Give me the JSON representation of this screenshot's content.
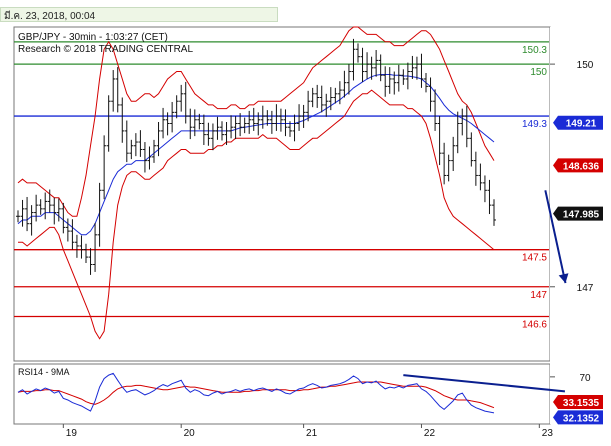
{
  "header": {
    "timestamp": "มี.ค. 23, 2018, 00:04"
  },
  "chart_data": {
    "type": "candlestick",
    "title": "GBP/JPY - 30min - 1:03:27 (CET)",
    "subtitle": "Research © 2018 TRADING CENTRAL",
    "price_axis": {
      "ticks": [
        {
          "value": 150,
          "label": "150"
        },
        {
          "value": 147,
          "label": "147"
        }
      ],
      "ylim": [
        146.0,
        150.5
      ]
    },
    "time_axis": {
      "ticks": [
        {
          "label": "19",
          "x_index": 10
        },
        {
          "label": "20",
          "x_index": 36
        },
        {
          "label": "21",
          "x_index": 63
        },
        {
          "label": "22",
          "x_index": 89
        },
        {
          "label": "23",
          "x_index": 115
        }
      ]
    },
    "levels": [
      {
        "value": 150.3,
        "label": "150.3",
        "color": "#2e8b2e"
      },
      {
        "value": 150.0,
        "label": "150",
        "color": "#2e8b2e"
      },
      {
        "value": 149.3,
        "label": "149.3",
        "color": "#1a2bd6"
      },
      {
        "value": 147.5,
        "label": "147.5",
        "color": "#d40000"
      },
      {
        "value": 147.0,
        "label": "147",
        "color": "#d40000"
      },
      {
        "value": 146.6,
        "label": "146.6",
        "color": "#d40000"
      }
    ],
    "price_markers": [
      {
        "value": 149.21,
        "label": "149.21",
        "bg": "#1a2bd6",
        "fg": "#ffffff"
      },
      {
        "value": 148.636,
        "label": "148.636",
        "bg": "#d40000",
        "fg": "#ffffff"
      },
      {
        "value": 147.985,
        "label": "147.985",
        "bg": "#111111",
        "fg": "#ffffff"
      }
    ],
    "forecast_arrow": {
      "from": [
        115,
        148.3
      ],
      "to": [
        119,
        147.05
      ],
      "color": "#0a1f8f"
    },
    "close": [
      147.95,
      148.05,
      147.85,
      148.0,
      148.1,
      148.05,
      148.15,
      148.1,
      148.0,
      148.05,
      147.8,
      147.75,
      147.6,
      147.55,
      147.5,
      147.4,
      147.3,
      147.7,
      148.3,
      148.9,
      149.5,
      149.8,
      149.45,
      149.1,
      148.8,
      148.9,
      148.95,
      148.85,
      148.7,
      148.75,
      148.9,
      149.1,
      149.25,
      149.2,
      149.35,
      149.5,
      149.6,
      149.3,
      149.15,
      149.25,
      149.2,
      149.05,
      149.0,
      149.1,
      149.15,
      149.05,
      149.1,
      149.15,
      149.2,
      149.15,
      149.2,
      149.25,
      149.2,
      149.25,
      149.3,
      149.25,
      149.2,
      149.3,
      149.25,
      149.15,
      149.1,
      149.2,
      149.3,
      149.35,
      149.5,
      149.6,
      149.55,
      149.45,
      149.5,
      149.55,
      149.6,
      149.65,
      149.75,
      149.9,
      150.2,
      150.1,
      149.9,
      150.0,
      149.95,
      150.05,
      149.85,
      149.7,
      149.8,
      149.75,
      149.85,
      149.8,
      149.9,
      149.95,
      150.0,
      149.8,
      149.7,
      149.5,
      149.2,
      148.8,
      148.5,
      148.7,
      148.9,
      149.2,
      149.3,
      149.0,
      148.7,
      148.5,
      148.4,
      148.3,
      148.1,
      147.9
    ],
    "band_upper": [
      148.4,
      148.45,
      148.4,
      148.4,
      148.4,
      148.35,
      148.3,
      148.25,
      148.2,
      148.2,
      148.1,
      148.0,
      147.95,
      147.95,
      148.2,
      148.5,
      148.9,
      149.3,
      149.8,
      150.2,
      150.3,
      150.2,
      150.0,
      149.8,
      149.6,
      149.5,
      149.5,
      149.55,
      149.6,
      149.6,
      149.55,
      149.6,
      149.7,
      149.8,
      149.85,
      149.9,
      149.9,
      149.8,
      149.7,
      149.6,
      149.55,
      149.5,
      149.45,
      149.45,
      149.4,
      149.4,
      149.4,
      149.45,
      149.45,
      149.4,
      149.4,
      149.45,
      149.45,
      149.5,
      149.5,
      149.5,
      149.5,
      149.5,
      149.5,
      149.55,
      149.6,
      149.65,
      149.7,
      149.75,
      149.85,
      149.95,
      150.0,
      150.05,
      150.1,
      150.15,
      150.2,
      150.25,
      150.35,
      150.45,
      150.5,
      150.5,
      150.45,
      150.4,
      150.4,
      150.4,
      150.35,
      150.3,
      150.3,
      150.25,
      150.25,
      150.25,
      150.3,
      150.35,
      150.4,
      150.45,
      150.45,
      150.4,
      150.3,
      150.2,
      150.05,
      149.9,
      149.75,
      149.6,
      149.5,
      149.45,
      149.35,
      149.2,
      149.05,
      148.9,
      148.8,
      148.7
    ],
    "band_lower": [
      147.6,
      147.6,
      147.55,
      147.6,
      147.65,
      147.7,
      147.75,
      147.8,
      147.8,
      147.7,
      147.5,
      147.35,
      147.2,
      147.05,
      146.9,
      146.75,
      146.6,
      146.4,
      146.3,
      146.4,
      146.9,
      147.6,
      148.1,
      148.35,
      148.5,
      148.55,
      148.55,
      148.5,
      148.45,
      148.45,
      148.5,
      148.55,
      148.6,
      148.7,
      148.75,
      148.8,
      148.85,
      148.85,
      148.8,
      148.8,
      148.8,
      148.8,
      148.85,
      148.85,
      148.9,
      148.9,
      148.95,
      148.95,
      149.0,
      149.0,
      149.0,
      149.0,
      149.0,
      149.0,
      149.05,
      149.0,
      149.0,
      149.0,
      148.95,
      148.9,
      148.85,
      148.85,
      148.85,
      148.9,
      148.95,
      149.0,
      149.0,
      149.05,
      149.1,
      149.15,
      149.2,
      149.25,
      149.3,
      149.4,
      149.5,
      149.55,
      149.6,
      149.6,
      149.65,
      149.6,
      149.55,
      149.5,
      149.45,
      149.45,
      149.45,
      149.45,
      149.4,
      149.4,
      149.35,
      149.3,
      149.2,
      149.0,
      148.75,
      148.5,
      148.2,
      148.05,
      147.95,
      147.9,
      147.85,
      147.8,
      147.75,
      147.7,
      147.65,
      147.6,
      147.55,
      147.5
    ],
    "ma": [
      147.85,
      147.9,
      147.9,
      147.95,
      147.95,
      147.95,
      148.0,
      148.0,
      148.0,
      147.95,
      147.9,
      147.85,
      147.8,
      147.75,
      147.7,
      147.7,
      147.75,
      147.85,
      148.0,
      148.15,
      148.3,
      148.45,
      148.55,
      148.6,
      148.65,
      148.65,
      148.7,
      148.7,
      148.7,
      148.75,
      148.8,
      148.85,
      148.9,
      148.95,
      149.0,
      149.05,
      149.1,
      149.1,
      149.1,
      149.1,
      149.1,
      149.1,
      149.1,
      149.1,
      149.1,
      149.1,
      149.1,
      149.1,
      149.12,
      149.14,
      149.15,
      149.16,
      149.17,
      149.18,
      149.19,
      149.2,
      149.2,
      149.2,
      149.2,
      149.2,
      149.2,
      149.2,
      149.22,
      149.24,
      149.27,
      149.3,
      149.33,
      149.36,
      149.4,
      149.44,
      149.48,
      149.52,
      149.57,
      149.62,
      149.68,
      149.72,
      149.76,
      149.8,
      149.83,
      149.85,
      149.86,
      149.86,
      149.86,
      149.85,
      149.85,
      149.84,
      149.84,
      149.83,
      149.82,
      149.8,
      149.75,
      149.7,
      149.62,
      149.54,
      149.45,
      149.38,
      149.33,
      149.3,
      149.27,
      149.24,
      149.2,
      149.15,
      149.1,
      149.05,
      149.0,
      148.95
    ],
    "rsi": {
      "label": "RSI14 - 9MA",
      "ticks": [
        {
          "value": 70,
          "label": "70"
        }
      ],
      "markers": [
        {
          "value": 33.1535,
          "label": "33.1535",
          "bg": "#d40000",
          "fg": "#ffffff"
        },
        {
          "value": 32.1352,
          "label": "32.1352",
          "bg": "#1a2bd6",
          "fg": "#ffffff"
        }
      ],
      "trendline": {
        "from": [
          85,
          72
        ],
        "to": [
          118,
          53
        ],
        "color": "#0a1f8f"
      },
      "values": [
        52,
        55,
        50,
        53,
        56,
        54,
        57,
        55,
        51,
        53,
        45,
        43,
        40,
        38,
        36,
        33,
        30,
        42,
        58,
        68,
        72,
        74,
        66,
        58,
        52,
        54,
        55,
        52,
        49,
        51,
        54,
        58,
        61,
        59,
        62,
        64,
        66,
        57,
        52,
        55,
        53,
        49,
        48,
        51,
        53,
        50,
        52,
        53,
        55,
        53,
        55,
        56,
        54,
        56,
        57,
        55,
        53,
        56,
        54,
        51,
        50,
        53,
        56,
        57,
        60,
        62,
        60,
        57,
        58,
        60,
        61,
        62,
        64,
        67,
        71,
        68,
        62,
        64,
        63,
        65,
        60,
        56,
        58,
        57,
        59,
        57,
        60,
        61,
        62,
        56,
        53,
        48,
        42,
        36,
        32,
        37,
        42,
        49,
        51,
        43,
        37,
        34,
        32,
        30,
        29,
        28
      ],
      "ma": [
        52,
        53,
        53,
        53,
        54,
        54,
        55,
        55,
        54,
        54,
        52,
        50,
        48,
        46,
        44,
        41,
        39,
        38,
        40,
        43,
        47,
        52,
        56,
        58,
        59,
        59,
        60,
        60,
        59,
        58,
        57,
        56,
        55,
        55,
        56,
        57,
        58,
        59,
        58,
        58,
        57,
        56,
        55,
        54,
        53,
        52,
        52,
        52,
        52,
        52,
        53,
        53,
        54,
        54,
        55,
        55,
        55,
        55,
        55,
        55,
        54,
        54,
        54,
        55,
        55,
        56,
        57,
        58,
        58,
        59,
        59,
        60,
        61,
        62,
        63,
        64,
        64,
        64,
        64,
        64,
        64,
        63,
        62,
        61,
        60,
        59,
        59,
        59,
        59,
        59,
        58,
        56,
        54,
        51,
        48,
        46,
        44,
        43,
        43,
        43,
        42,
        41,
        40,
        38,
        36,
        34
      ],
      "ylim": [
        15,
        85
      ]
    }
  }
}
